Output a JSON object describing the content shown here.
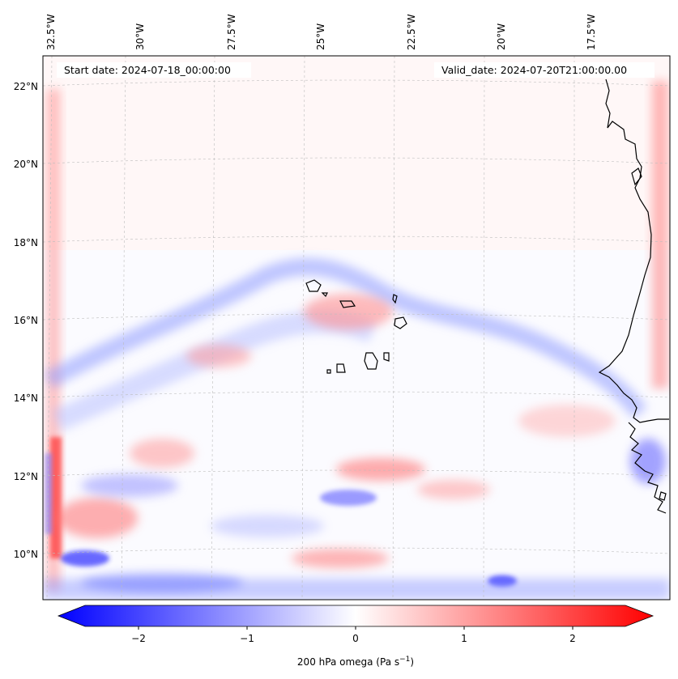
{
  "header": {
    "start_date": "Start date: 2024-07-18_00:00:00",
    "valid_date": "Valid_date: 2024-07-20T21:00:00.00"
  },
  "map": {
    "lon_labels": [
      "32.5°W",
      "30°W",
      "27.5°W",
      "25°W",
      "22.5°W",
      "20°W",
      "17.5°W"
    ],
    "lat_labels": [
      "22°N",
      "20°N",
      "18°N",
      "16°N",
      "14°N",
      "12°N",
      "10°N"
    ],
    "field": "200 hPa omega",
    "colors": {
      "negative": "#0000ff",
      "zero": "#ffffff",
      "positive": "#ff0000",
      "coast": "#000000"
    }
  },
  "colorbar": {
    "ticks": [
      "−2",
      "−1",
      "0",
      "1",
      "2"
    ],
    "label_main": "200 hPa omega (Pa s",
    "label_sup": "−1",
    "label_end": ")",
    "vmin": -2.6,
    "vmax": 2.6
  }
}
